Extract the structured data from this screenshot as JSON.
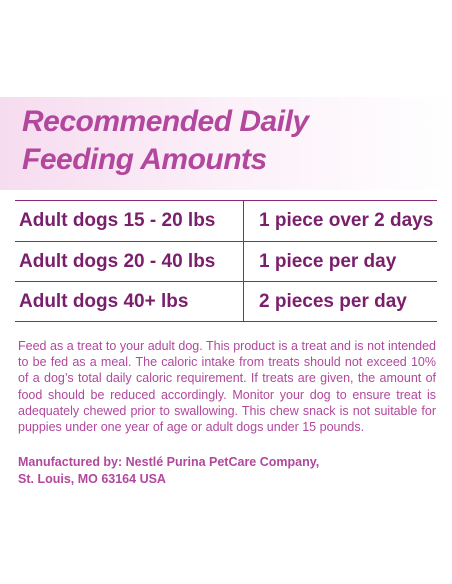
{
  "header": {
    "title_line1": "Recommended Daily",
    "title_line2": "Feeding Amounts"
  },
  "feeding_table": {
    "rows": [
      {
        "weight": "Adult dogs 15 - 20 lbs",
        "amount": "1 piece over 2 days"
      },
      {
        "weight": "Adult dogs 20 - 40 lbs",
        "amount": "1 piece per day"
      },
      {
        "weight": "Adult dogs 40+ lbs",
        "amount": "2 pieces per day"
      }
    ]
  },
  "instructions": {
    "text": "Feed as a treat to your adult dog. This product is a treat and is not intended to be fed as a meal. The caloric intake from treats should not exceed 10% of a dog’s total daily caloric requirement. If treats are given, the amount of food should be reduced accordingly. Monitor your dog to ensure treat is adequately chewed prior to swallowing. This chew snack is not suitable for puppies under one year of age or adult dogs under 15 pounds."
  },
  "manufacturer": {
    "line1": "Manufactured by: Nestlé Purina PetCare Company,",
    "line2": "St. Louis, MO 63164 USA"
  },
  "colors": {
    "title": "#b2479d",
    "table_text": "#7a1f6c",
    "table_lines": "#8a2a77",
    "band": "#f6dcef"
  }
}
